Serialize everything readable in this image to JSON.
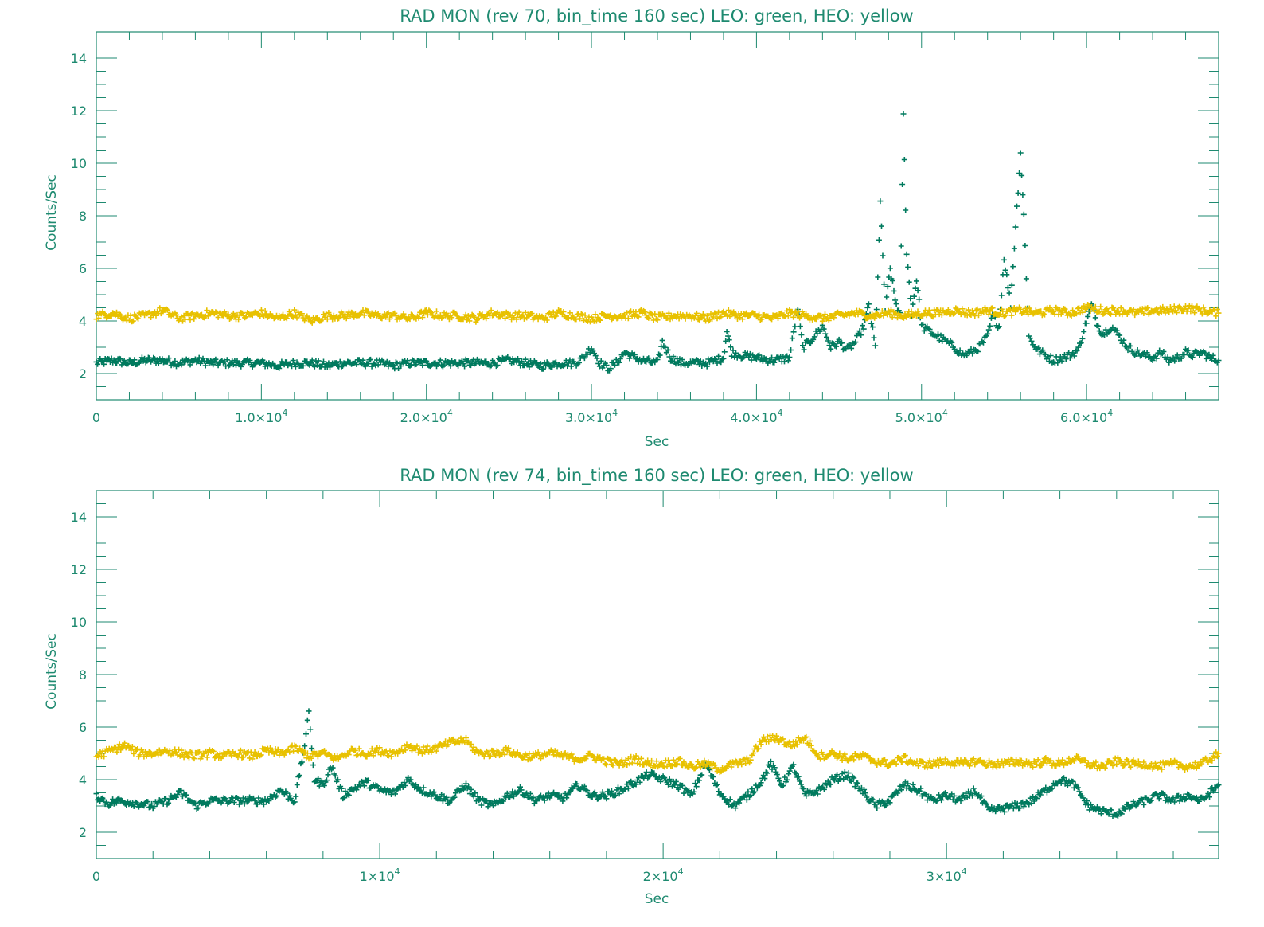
{
  "colors": {
    "axis": "#1e8a70",
    "leo": "#007a5e",
    "heo": "#e8c100",
    "background": "#ffffff"
  },
  "chart_data": [
    {
      "type": "scatter",
      "title": "RAD MON (rev 70, bin_time 160 sec) LEO: green, HEO: yellow",
      "xlabel": "Sec",
      "ylabel": "Counts/Sec",
      "xlim": [
        0,
        68000
      ],
      "ylim": [
        1,
        15
      ],
      "marker": "plus",
      "xticks": [
        {
          "value": 0,
          "label": "0",
          "mant": "",
          "exp": ""
        },
        {
          "value": 10000,
          "label": "",
          "mant": "1.0×10",
          "exp": "4"
        },
        {
          "value": 20000,
          "label": "",
          "mant": "2.0×10",
          "exp": "4"
        },
        {
          "value": 30000,
          "label": "",
          "mant": "3.0×10",
          "exp": "4"
        },
        {
          "value": 40000,
          "label": "",
          "mant": "4.0×10",
          "exp": "4"
        },
        {
          "value": 50000,
          "label": "",
          "mant": "5.0×10",
          "exp": "4"
        },
        {
          "value": 60000,
          "label": "",
          "mant": "6.0×10",
          "exp": "4"
        }
      ],
      "yticks": [
        2,
        4,
        6,
        8,
        10,
        12,
        14
      ],
      "series": [
        {
          "color": "#007a5e",
          "x": [
            0,
            1000,
            2000,
            3000,
            4000,
            5000,
            6000,
            7000,
            8000,
            9000,
            10000,
            11000,
            12000,
            13000,
            14000,
            15000,
            16000,
            17000,
            18000,
            19000,
            20000,
            21000,
            22000,
            23000,
            24000,
            25000,
            26000,
            27000,
            28000,
            29000,
            29500,
            30000,
            30500,
            31000,
            31500,
            32000,
            33000,
            34000,
            34300,
            34800,
            35500,
            36000,
            37000,
            38000,
            38200,
            38500,
            39000,
            40000,
            41000,
            42000,
            42500,
            42800,
            43200,
            44000,
            44500,
            45000,
            45500,
            46000,
            46500,
            46800,
            47200,
            47500,
            47800,
            48100,
            48400,
            48700,
            48900,
            49100,
            49400,
            49700,
            50000,
            50500,
            51000,
            51500,
            52000,
            52500,
            53000,
            53500,
            54000,
            54300,
            54700,
            55000,
            55400,
            55700,
            56000,
            56200,
            56500,
            57000,
            57500,
            58000,
            58500,
            59000,
            59500,
            60000,
            60300,
            60700,
            61000,
            61500,
            62000,
            62500,
            63000,
            63500,
            64000,
            64500,
            65000,
            65500,
            66000,
            66500,
            67000,
            67500,
            68000
          ],
          "y": [
            2.4,
            2.5,
            2.4,
            2.5,
            2.5,
            2.4,
            2.5,
            2.4,
            2.4,
            2.4,
            2.4,
            2.3,
            2.4,
            2.4,
            2.3,
            2.4,
            2.4,
            2.4,
            2.3,
            2.4,
            2.4,
            2.4,
            2.4,
            2.4,
            2.4,
            2.5,
            2.4,
            2.3,
            2.4,
            2.4,
            2.6,
            3.0,
            2.4,
            2.2,
            2.4,
            2.8,
            2.5,
            2.4,
            3.2,
            2.6,
            2.4,
            2.4,
            2.4,
            2.6,
            3.6,
            2.8,
            2.7,
            2.6,
            2.5,
            2.6,
            4.5,
            3.0,
            3.2,
            3.8,
            3.0,
            3.2,
            2.9,
            3.2,
            3.8,
            4.6,
            3.0,
            8.5,
            4.4,
            6.0,
            4.8,
            4.2,
            11.8,
            6.6,
            4.3,
            5.6,
            3.8,
            3.6,
            3.4,
            3.2,
            3.0,
            2.7,
            2.8,
            3.0,
            3.4,
            4.2,
            3.8,
            6.4,
            4.6,
            7.6,
            10.4,
            8.0,
            3.4,
            2.9,
            2.7,
            2.5,
            2.6,
            2.7,
            2.9,
            4.0,
            4.6,
            3.8,
            3.5,
            3.8,
            3.4,
            3.0,
            2.8,
            2.7,
            2.6,
            2.8,
            2.5,
            2.6,
            2.8,
            2.7,
            2.8,
            2.6,
            2.5
          ]
        },
        {
          "color": "#e8c100",
          "x": [
            0,
            1000,
            2000,
            3000,
            4000,
            5000,
            6000,
            7000,
            8000,
            9000,
            10000,
            11000,
            12000,
            13000,
            14000,
            15000,
            16000,
            17000,
            18000,
            19000,
            20000,
            21000,
            22000,
            23000,
            24000,
            25000,
            26000,
            27000,
            28000,
            29000,
            30000,
            31000,
            32000,
            33000,
            34000,
            35000,
            36000,
            37000,
            38000,
            39000,
            40000,
            41000,
            42000,
            43000,
            44000,
            45000,
            46000,
            47000,
            48000,
            49000,
            50000,
            51000,
            52000,
            53000,
            54000,
            55000,
            56000,
            57000,
            58000,
            59000,
            60000,
            61000,
            62000,
            63000,
            64000,
            65000,
            66000,
            67000,
            68000
          ],
          "y": [
            4.2,
            4.3,
            4.1,
            4.2,
            4.4,
            4.1,
            4.2,
            4.3,
            4.2,
            4.2,
            4.3,
            4.1,
            4.3,
            4.0,
            4.2,
            4.2,
            4.3,
            4.2,
            4.2,
            4.1,
            4.3,
            4.2,
            4.2,
            4.1,
            4.3,
            4.2,
            4.2,
            4.1,
            4.3,
            4.2,
            4.1,
            4.2,
            4.2,
            4.3,
            4.1,
            4.2,
            4.2,
            4.1,
            4.3,
            4.2,
            4.2,
            4.1,
            4.3,
            4.2,
            4.1,
            4.2,
            4.3,
            4.2,
            4.3,
            4.2,
            4.3,
            4.3,
            4.4,
            4.3,
            4.4,
            4.3,
            4.4,
            4.3,
            4.4,
            4.3,
            4.5,
            4.4,
            4.4,
            4.3,
            4.4,
            4.4,
            4.5,
            4.4,
            4.3
          ]
        }
      ]
    },
    {
      "type": "scatter",
      "title": "RAD MON (rev 74, bin_time 160 sec) LEO: green, HEO: yellow",
      "xlabel": "Sec",
      "ylabel": "Counts/Sec",
      "xlim": [
        0,
        39600
      ],
      "ylim": [
        1,
        15
      ],
      "marker": "plus",
      "xticks": [
        {
          "value": 0,
          "label": "0",
          "mant": "",
          "exp": ""
        },
        {
          "value": 10000,
          "label": "",
          "mant": "1×10",
          "exp": "4"
        },
        {
          "value": 20000,
          "label": "",
          "mant": "2×10",
          "exp": "4"
        },
        {
          "value": 30000,
          "label": "",
          "mant": "3×10",
          "exp": "4"
        }
      ],
      "yticks": [
        2,
        4,
        6,
        8,
        10,
        12,
        14
      ],
      "series": [
        {
          "color": "#007a5e",
          "x": [
            0,
            400,
            800,
            1500,
            2000,
            2500,
            3000,
            3500,
            4000,
            5000,
            6000,
            6500,
            7000,
            7300,
            7500,
            7700,
            8000,
            8300,
            8700,
            9000,
            9500,
            10000,
            10500,
            11000,
            11500,
            12000,
            12500,
            13000,
            13500,
            14000,
            14500,
            15000,
            15500,
            16000,
            16500,
            17000,
            17500,
            18000,
            18500,
            19000,
            19500,
            20000,
            20500,
            21000,
            21500,
            22000,
            22500,
            23000,
            23500,
            23800,
            24200,
            24600,
            25000,
            25500,
            26000,
            26500,
            27000,
            27500,
            28000,
            28500,
            29000,
            29500,
            30000,
            30500,
            31000,
            31500,
            32000,
            32500,
            33000,
            33500,
            34000,
            34500,
            35000,
            35500,
            36000,
            36500,
            37000,
            37500,
            38000,
            38500,
            39000,
            39600
          ],
          "y": [
            3.4,
            3.1,
            3.2,
            3.1,
            3.0,
            3.2,
            3.5,
            3.0,
            3.2,
            3.2,
            3.2,
            3.6,
            3.2,
            5.0,
            6.5,
            4.0,
            3.8,
            4.5,
            3.4,
            3.6,
            3.9,
            3.6,
            3.5,
            4.0,
            3.6,
            3.4,
            3.2,
            3.8,
            3.2,
            3.0,
            3.4,
            3.6,
            3.2,
            3.4,
            3.3,
            3.8,
            3.4,
            3.4,
            3.6,
            3.9,
            4.2,
            4.0,
            3.8,
            3.4,
            4.6,
            3.5,
            3.0,
            3.4,
            4.0,
            4.6,
            3.8,
            4.5,
            3.4,
            3.6,
            4.0,
            4.2,
            3.6,
            3.0,
            3.2,
            3.8,
            3.6,
            3.2,
            3.4,
            3.2,
            3.6,
            2.8,
            2.9,
            3.0,
            3.2,
            3.6,
            4.0,
            3.8,
            3.0,
            2.8,
            2.7,
            3.0,
            3.2,
            3.4,
            3.2,
            3.4,
            3.2,
            3.8
          ]
        },
        {
          "color": "#e8c100",
          "x": [
            0,
            500,
            1000,
            1500,
            2000,
            2500,
            3000,
            3500,
            4000,
            4500,
            5000,
            5500,
            6000,
            6500,
            7000,
            7500,
            8000,
            8500,
            9000,
            9500,
            10000,
            10500,
            11000,
            11500,
            12000,
            12500,
            13000,
            13500,
            14000,
            14500,
            15000,
            15500,
            16000,
            16500,
            17000,
            17500,
            18000,
            18500,
            19000,
            19500,
            20000,
            20500,
            21000,
            21500,
            22000,
            22500,
            23000,
            23500,
            24000,
            24500,
            25000,
            25500,
            26000,
            26500,
            27000,
            27500,
            28000,
            28500,
            29000,
            29500,
            30000,
            30500,
            31000,
            31500,
            32000,
            32500,
            33000,
            33500,
            34000,
            34500,
            35000,
            35500,
            36000,
            36500,
            37000,
            37500,
            38000,
            38500,
            39000,
            39600
          ],
          "y": [
            4.9,
            5.1,
            5.3,
            5.0,
            5.0,
            5.1,
            5.0,
            4.9,
            5.0,
            4.9,
            5.0,
            4.9,
            5.1,
            5.0,
            5.2,
            4.9,
            5.0,
            4.8,
            5.1,
            5.0,
            5.1,
            5.0,
            5.3,
            5.1,
            5.2,
            5.4,
            5.5,
            5.0,
            5.0,
            5.1,
            4.9,
            4.9,
            5.0,
            4.9,
            4.8,
            4.9,
            4.7,
            4.6,
            4.8,
            4.6,
            4.6,
            4.7,
            4.5,
            4.6,
            4.4,
            4.6,
            4.7,
            5.5,
            5.6,
            5.3,
            5.6,
            4.9,
            5.0,
            4.8,
            4.9,
            4.7,
            4.6,
            4.8,
            4.6,
            4.6,
            4.7,
            4.6,
            4.7,
            4.6,
            4.6,
            4.7,
            4.6,
            4.7,
            4.6,
            4.8,
            4.6,
            4.5,
            4.7,
            4.6,
            4.6,
            4.5,
            4.6,
            4.5,
            4.6,
            5.0
          ]
        }
      ]
    }
  ]
}
